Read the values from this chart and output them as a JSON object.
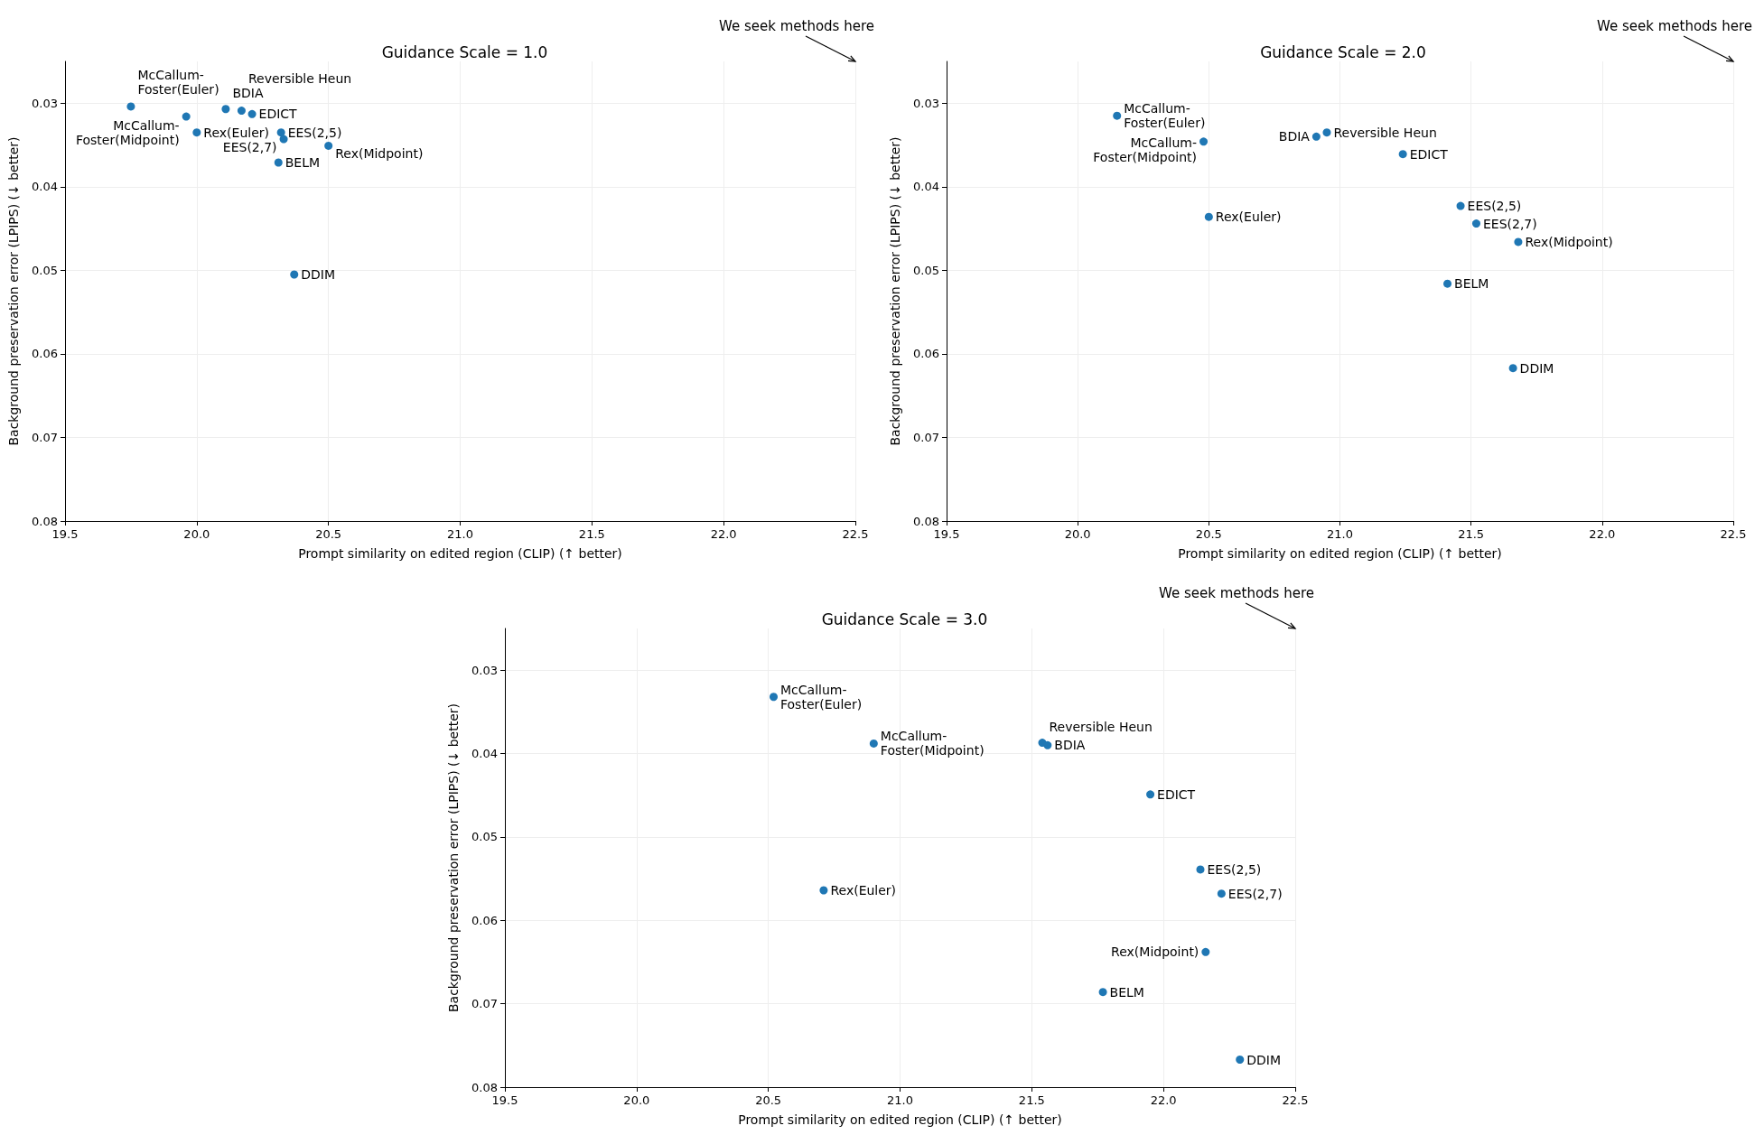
{
  "chart_data": [
    {
      "type": "scatter",
      "title": "Guidance Scale = 1.0",
      "xlabel": "Prompt similarity on edited region (CLIP) (↑ better)",
      "ylabel": "Background preservation error (LPIPS) (↓ better)",
      "xlim": [
        19.5,
        22.5
      ],
      "ylim": [
        0.08,
        0.025
      ],
      "xticks": [
        {
          "value": 19.5,
          "label": "19.5"
        },
        {
          "value": 20,
          "label": "20.0"
        },
        {
          "value": 20.5,
          "label": "20.5"
        },
        {
          "value": 21,
          "label": "21.0"
        },
        {
          "value": 21.5,
          "label": "21.5"
        },
        {
          "value": 22,
          "label": "22.0"
        },
        {
          "value": 22.5,
          "label": "22.5"
        }
      ],
      "yticks": [
        0.03,
        0.04,
        0.05,
        0.06,
        0.07,
        0.08
      ],
      "grid": true,
      "marker": "circle",
      "annotations": [
        "We seek methods here"
      ],
      "series": [
        {
          "name": "McCallum-\nFoster(Euler)",
          "color": "#1f77b4",
          "x": [
            19.75
          ],
          "values": [
            0.0304
          ]
        },
        {
          "name": "McCallum-\nFoster(Midpoint)",
          "color": "#1f77b4",
          "x": [
            19.96
          ],
          "values": [
            0.0316
          ]
        },
        {
          "name": "BDIA",
          "color": "#1f77b4",
          "x": [
            20.11
          ],
          "values": [
            0.0307
          ]
        },
        {
          "name": "Reversible Heun",
          "color": "#1f77b4",
          "x": [
            20.17
          ],
          "values": [
            0.0309
          ]
        },
        {
          "name": "EDICT",
          "color": "#1f77b4",
          "x": [
            20.21
          ],
          "values": [
            0.0313
          ]
        },
        {
          "name": "Rex(Euler)",
          "color": "#1f77b4",
          "x": [
            20.0
          ],
          "values": [
            0.0335
          ]
        },
        {
          "name": "EES(2,5)",
          "color": "#1f77b4",
          "x": [
            20.32
          ],
          "values": [
            0.0335
          ]
        },
        {
          "name": "EES(2,7)",
          "color": "#1f77b4",
          "x": [
            20.33
          ],
          "values": [
            0.0343
          ]
        },
        {
          "name": "Rex(Midpoint)",
          "color": "#1f77b4",
          "x": [
            20.5
          ],
          "values": [
            0.0351
          ]
        },
        {
          "name": "BELM",
          "color": "#1f77b4",
          "x": [
            20.31
          ],
          "values": [
            0.0371
          ]
        },
        {
          "name": "DDIM",
          "color": "#1f77b4",
          "x": [
            20.37
          ],
          "values": [
            0.0505
          ]
        }
      ]
    },
    {
      "type": "scatter",
      "title": "Guidance Scale = 2.0",
      "xlabel": "Prompt similarity on edited region (CLIP) (↑ better)",
      "ylabel": "Background preservation error (LPIPS) (↓ better)",
      "xlim": [
        19.5,
        22.5
      ],
      "ylim": [
        0.08,
        0.025
      ],
      "xticks": [
        {
          "value": 19.5,
          "label": "19.5"
        },
        {
          "value": 20,
          "label": "20.0"
        },
        {
          "value": 20.5,
          "label": "20.5"
        },
        {
          "value": 21,
          "label": "21.0"
        },
        {
          "value": 21.5,
          "label": "21.5"
        },
        {
          "value": 22,
          "label": "22.0"
        },
        {
          "value": 22.5,
          "label": "22.5"
        }
      ],
      "yticks": [
        0.03,
        0.04,
        0.05,
        0.06,
        0.07,
        0.08
      ],
      "grid": true,
      "marker": "circle",
      "annotations": [
        "We seek methods here"
      ],
      "series": [
        {
          "name": "McCallum-\nFoster(Euler)",
          "color": "#1f77b4",
          "x": [
            20.15
          ],
          "values": [
            0.0315
          ]
        },
        {
          "name": "McCallum-\nFoster(Midpoint)",
          "color": "#1f77b4",
          "x": [
            20.48
          ],
          "values": [
            0.0346
          ]
        },
        {
          "name": "BDIA",
          "color": "#1f77b4",
          "x": [
            20.91
          ],
          "values": [
            0.034
          ]
        },
        {
          "name": "Reversible Heun",
          "color": "#1f77b4",
          "x": [
            20.95
          ],
          "values": [
            0.0335
          ]
        },
        {
          "name": "EDICT",
          "color": "#1f77b4",
          "x": [
            21.24
          ],
          "values": [
            0.0361
          ]
        },
        {
          "name": "EES(2,5)",
          "color": "#1f77b4",
          "x": [
            21.46
          ],
          "values": [
            0.0423
          ]
        },
        {
          "name": "Rex(Euler)",
          "color": "#1f77b4",
          "x": [
            20.5
          ],
          "values": [
            0.0436
          ]
        },
        {
          "name": "EES(2,7)",
          "color": "#1f77b4",
          "x": [
            21.52
          ],
          "values": [
            0.0444
          ]
        },
        {
          "name": "Rex(Midpoint)",
          "color": "#1f77b4",
          "x": [
            21.68
          ],
          "values": [
            0.0466
          ]
        },
        {
          "name": "BELM",
          "color": "#1f77b4",
          "x": [
            21.41
          ],
          "values": [
            0.0516
          ]
        },
        {
          "name": "DDIM",
          "color": "#1f77b4",
          "x": [
            21.66
          ],
          "values": [
            0.0617
          ]
        }
      ]
    },
    {
      "type": "scatter",
      "title": "Guidance Scale = 3.0",
      "xlabel": "Prompt similarity on edited region (CLIP) (↑ better)",
      "ylabel": "Background preservation error (LPIPS) (↓ better)",
      "xlim": [
        19.5,
        22.5
      ],
      "ylim": [
        0.08,
        0.025
      ],
      "xticks": [
        {
          "value": 19.5,
          "label": "19.5"
        },
        {
          "value": 20,
          "label": "20.0"
        },
        {
          "value": 20.5,
          "label": "20.5"
        },
        {
          "value": 21,
          "label": "21.0"
        },
        {
          "value": 21.5,
          "label": "21.5"
        },
        {
          "value": 22,
          "label": "22.0"
        },
        {
          "value": 22.5,
          "label": "22.5"
        }
      ],
      "yticks": [
        0.03,
        0.04,
        0.05,
        0.06,
        0.07,
        0.08
      ],
      "grid": true,
      "marker": "circle",
      "annotations": [
        "We seek methods here"
      ],
      "series": [
        {
          "name": "McCallum-\nFoster(Euler)",
          "color": "#1f77b4",
          "x": [
            20.52
          ],
          "values": [
            0.0332
          ]
        },
        {
          "name": "McCallum-\nFoster(Midpoint)",
          "color": "#1f77b4",
          "x": [
            20.9
          ],
          "values": [
            0.0388
          ]
        },
        {
          "name": "Reversible Heun",
          "color": "#1f77b4",
          "x": [
            21.54
          ],
          "values": [
            0.0387
          ]
        },
        {
          "name": "BDIA",
          "color": "#1f77b4",
          "x": [
            21.56
          ],
          "values": [
            0.039
          ]
        },
        {
          "name": "EDICT",
          "color": "#1f77b4",
          "x": [
            21.95
          ],
          "values": [
            0.0449
          ]
        },
        {
          "name": "EES(2,5)",
          "color": "#1f77b4",
          "x": [
            22.14
          ],
          "values": [
            0.0539
          ]
        },
        {
          "name": "Rex(Euler)",
          "color": "#1f77b4",
          "x": [
            20.71
          ],
          "values": [
            0.0564
          ]
        },
        {
          "name": "EES(2,7)",
          "color": "#1f77b4",
          "x": [
            22.22
          ],
          "values": [
            0.0568
          ]
        },
        {
          "name": "Rex(Midpoint)",
          "color": "#1f77b4",
          "x": [
            22.16
          ],
          "values": [
            0.0638
          ]
        },
        {
          "name": "BELM",
          "color": "#1f77b4",
          "x": [
            21.77
          ],
          "values": [
            0.0686
          ]
        },
        {
          "name": "DDIM",
          "color": "#1f77b4",
          "x": [
            22.29
          ],
          "values": [
            0.0767
          ]
        }
      ]
    }
  ]
}
